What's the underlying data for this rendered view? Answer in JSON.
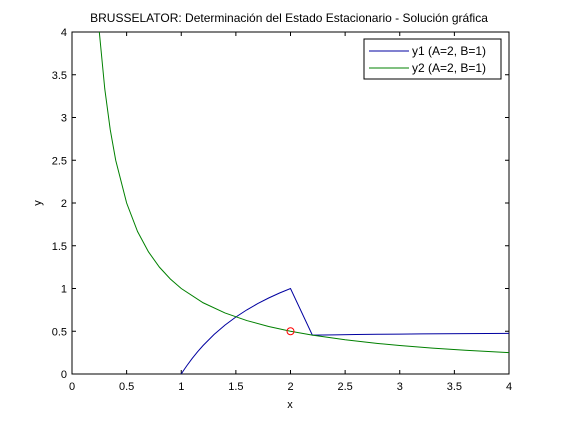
{
  "chart_data": {
    "type": "line",
    "title": "BRUSSELATOR: Determinación del Estado Estacionario - Solución gráfica",
    "xlabel": "x",
    "ylabel": "y",
    "xlim": [
      0,
      4
    ],
    "ylim": [
      0,
      4
    ],
    "x_ticks": [
      "0",
      "0.5",
      "1",
      "1.5",
      "2",
      "2.5",
      "3",
      "3.5",
      "4"
    ],
    "y_ticks": [
      "0",
      "0.5",
      "1",
      "1.5",
      "2",
      "2.5",
      "3",
      "3.5",
      "4"
    ],
    "grid": false,
    "legend_position": "top-right",
    "series": [
      {
        "name": "y1 (A=2, B=1)",
        "color": "#0000a0",
        "x": [
          1.0,
          1.02,
          1.05,
          1.1,
          1.15,
          1.2,
          1.3,
          1.4,
          1.5,
          1.6,
          1.7,
          1.8,
          1.9,
          2.0,
          2.2,
          2.4,
          2.6,
          2.8,
          3.0,
          3.2,
          3.4,
          3.6,
          3.8,
          4.0
        ],
        "y": [
          0.0,
          0.0392,
          0.0952,
          0.1818,
          0.2609,
          0.3333,
          0.4615,
          0.5714,
          0.6667,
          0.75,
          0.8235,
          0.8889,
          0.9474,
          1.0,
          0.4545,
          0.4583,
          0.4615,
          0.4643,
          0.4667,
          0.4688,
          0.4706,
          0.4722,
          0.4737,
          0.475
        ]
      },
      {
        "name": "y2 (A=2, B=1)",
        "color": "#008000",
        "x": [
          0.25,
          0.3,
          0.35,
          0.4,
          0.5,
          0.6,
          0.7,
          0.8,
          0.9,
          1.0,
          1.2,
          1.4,
          1.6,
          1.8,
          2.0,
          2.2,
          2.5,
          2.8,
          3.0,
          3.3,
          3.6,
          4.0
        ],
        "y": [
          4.0,
          3.3333,
          2.8571,
          2.5,
          2.0,
          1.6667,
          1.4286,
          1.25,
          1.1111,
          1.0,
          0.8333,
          0.7143,
          0.625,
          0.5556,
          0.5,
          0.4545,
          0.4,
          0.3571,
          0.3333,
          0.303,
          0.2778,
          0.25
        ]
      }
    ],
    "marker": {
      "x": 2,
      "y": 0.5,
      "color": "#ff0000",
      "shape": "circle"
    }
  }
}
